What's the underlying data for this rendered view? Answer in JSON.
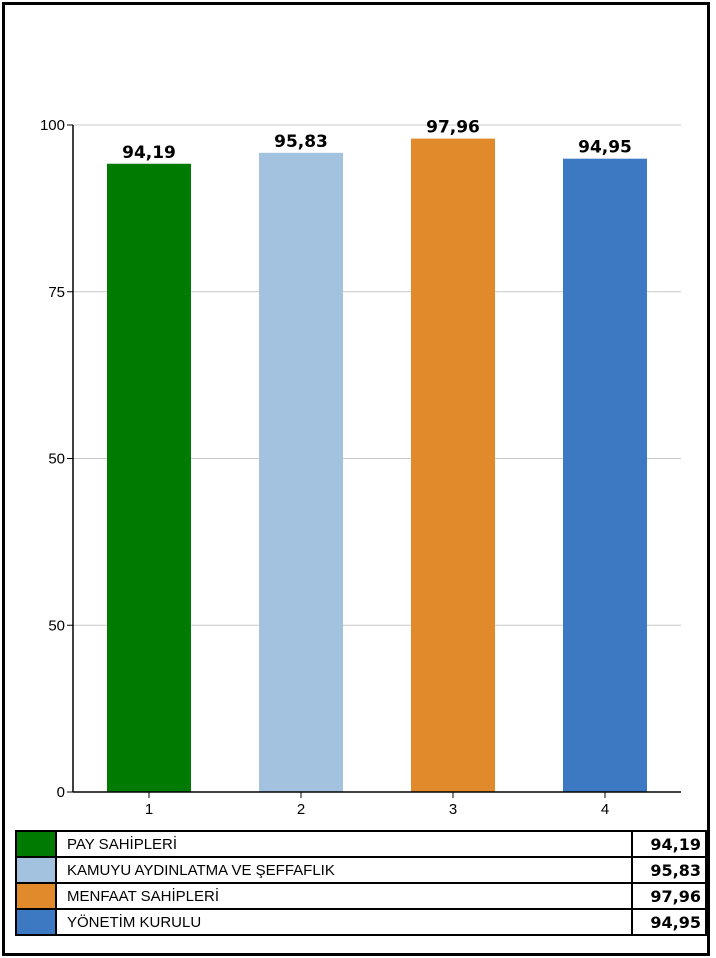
{
  "chart_data": {
    "type": "bar",
    "categories": [
      "1",
      "2",
      "3",
      "4"
    ],
    "values": [
      94.19,
      95.83,
      97.96,
      94.95
    ],
    "value_labels": [
      "94,19",
      "95,83",
      "97,96",
      "94,95"
    ],
    "y_tick_labels": [
      "0",
      "50",
      "50",
      "75",
      "100"
    ],
    "ylim": [
      0,
      100
    ],
    "grid": "horizontal",
    "colors": [
      "#007a00",
      "#a3c2e0",
      "#e08a2c",
      "#3d78c2"
    ],
    "title": "",
    "xlabel": "",
    "ylabel": ""
  },
  "legend": {
    "rows": [
      {
        "name": "PAY SAHİPLERİ",
        "value": "94,19",
        "color": "#007a00"
      },
      {
        "name": "KAMUYU AYDINLATMA VE ŞEFFAFLIK",
        "value": "95,83",
        "color": "#a3c2e0"
      },
      {
        "name": "MENFAAT SAHİPLERİ",
        "value": "97,96",
        "color": "#e08a2c"
      },
      {
        "name": "YÖNETİM KURULU",
        "value": "94,95",
        "color": "#3d78c2"
      }
    ]
  }
}
